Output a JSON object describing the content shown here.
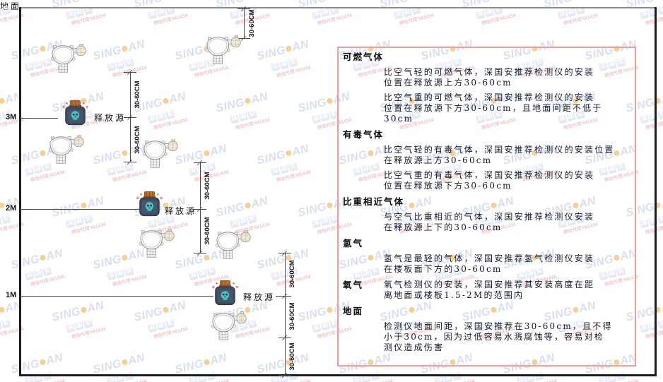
{
  "watermark": {
    "brand_left": "SING",
    "brand_right": "AN",
    "cn_chars": [
      "深",
      "国",
      "安"
    ],
    "subtext": "微信代理:661434"
  },
  "diagram": {
    "dim_label": "30-60CM",
    "height_labels": {
      "m3": "3M",
      "m2": "2M",
      "m1": "1M"
    },
    "ground_label": "地面",
    "source_label": "释放源"
  },
  "panel": {
    "border_color": "#f19b9b",
    "sections": [
      {
        "heading": "可燃气体",
        "inline": false,
        "paras": [
          [
            "比空气轻的可燃气体，深国安推荐检测仪的安装",
            "位置在释放源上方30-60cm"
          ],
          [
            "比空气重的可燃气体，深国安推荐检测仪的安装",
            "位置在释放源下方30-60cm，且地面间距不低于",
            "30cm"
          ]
        ]
      },
      {
        "heading": "有毒气体",
        "inline": false,
        "paras": [
          [
            "比空气轻的有毒气体，深国安推荐检测仪的安装位置",
            "在释放源上方30-60cm"
          ],
          [
            "比空气重的有毒气体，深国安推荐检测仪的安装",
            "位置在释放源下方30-60cm"
          ]
        ]
      },
      {
        "heading": "比重相近气体",
        "inline": false,
        "paras": [
          [
            "与空气比重相近的气体，深国安推荐检测仪安装",
            "在释放源上下的30-60cm"
          ]
        ]
      },
      {
        "heading": "氢气",
        "inline": false,
        "paras": [
          [
            "氢气是最轻的气体，深国安推荐氢气检测仪安装",
            "在楼板面下方的30-60cm"
          ]
        ]
      },
      {
        "heading": "氧气",
        "inline": true,
        "paras": [
          [
            "氧气检测仪的安装，深国安推荐其安装高度在距",
            "离地面或楼板1.5-2M的范围内"
          ]
        ]
      },
      {
        "heading": "地面",
        "inline": false,
        "paras": [
          [
            "检测仪地面间距，深国安推荐在30-60cm，且不得",
            "小于30cm，因为过低容易水溅腐蚀等，容易对检",
            "测仪造成伤害"
          ]
        ]
      }
    ]
  }
}
